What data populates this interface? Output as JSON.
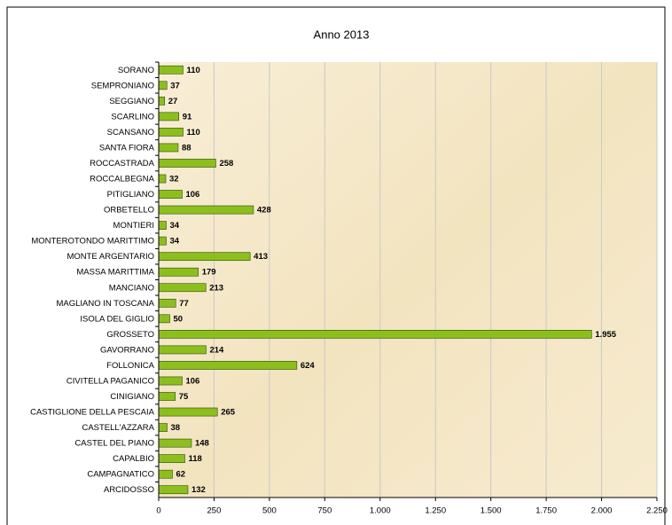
{
  "chart_data": {
    "type": "bar",
    "orientation": "horizontal",
    "title": "Anno 2013",
    "categories": [
      "SORANO",
      "SEMPRONIANO",
      "SEGGIANO",
      "SCARLINO",
      "SCANSANO",
      "SANTA FIORA",
      "ROCCASTRADA",
      "ROCCALBEGNA",
      "PITIGLIANO",
      "ORBETELLO",
      "MONTIERI",
      "MONTEROTONDO MARITTIMO",
      "MONTE ARGENTARIO",
      "MASSA MARITTIMA",
      "MANCIANO",
      "MAGLIANO IN TOSCANA",
      "ISOLA DEL GIGLIO",
      "GROSSETO",
      "GAVORRANO",
      "FOLLONICA",
      "CIVITELLA PAGANICO",
      "CINIGIANO",
      "CASTIGLIONE DELLA PESCAIA",
      "CASTELL'AZZARA",
      "CASTEL DEL PIANO",
      "CAPALBIO",
      "CAMPAGNATICO",
      "ARCIDOSSO"
    ],
    "values": [
      110,
      37,
      27,
      91,
      110,
      88,
      258,
      32,
      106,
      428,
      34,
      34,
      413,
      179,
      213,
      77,
      50,
      1955,
      214,
      624,
      106,
      75,
      265,
      38,
      148,
      118,
      62,
      132
    ],
    "value_labels": [
      "110",
      "37",
      "27",
      "91",
      "110",
      "88",
      "258",
      "32",
      "106",
      "428",
      "34",
      "34",
      "413",
      "179",
      "213",
      "77",
      "50",
      "1.955",
      "214",
      "624",
      "106",
      "75",
      "265",
      "38",
      "148",
      "118",
      "62",
      "132"
    ],
    "color": "#8cbf1e",
    "xlim": [
      0,
      2250
    ],
    "xticks": [
      0,
      250,
      500,
      750,
      {
        "value": 1000,
        "label": "1.000"
      },
      {
        "value": 1250,
        "label": "1.250"
      },
      {
        "value": 1500,
        "label": "1.500"
      },
      {
        "value": 1750,
        "label": "1.750"
      },
      {
        "value": 2000,
        "label": "2.000"
      },
      {
        "value": 2250,
        "label": "2.250"
      }
    ],
    "grid": true
  }
}
